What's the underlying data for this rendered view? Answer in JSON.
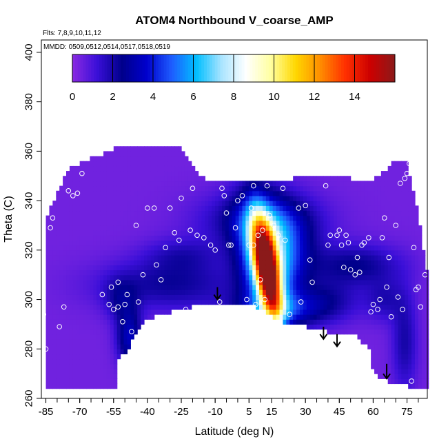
{
  "chart_data": {
    "type": "heatmap",
    "title": "ATOM4 Northbound V_coarse_AMP",
    "subtitle_lines": [
      "Flts: 7,8,9,10,11,12",
      "MMDD: 0509,0512,0514,0517,0518,0519"
    ],
    "xlabel": "Latitude (deg N)",
    "ylabel": "Theta (C)",
    "xlim": [
      -87,
      84
    ],
    "ylim": [
      260,
      405
    ],
    "x_ticks": [
      -85,
      -70,
      -55,
      -40,
      -25,
      -10,
      5,
      15,
      30,
      45,
      60,
      75
    ],
    "x_tick_labels": [
      "-85",
      "-70",
      "-55",
      "-40",
      "-25",
      "-10",
      "5",
      "15",
      "30",
      "45",
      "60",
      "75"
    ],
    "y_ticks": [
      260,
      280,
      300,
      320,
      340,
      360,
      380,
      400
    ],
    "y_tick_labels": [
      "260",
      "280",
      "300",
      "320",
      "340",
      "360",
      "380",
      "400"
    ],
    "colorbar": {
      "range": [
        0,
        16
      ],
      "ticks": [
        0,
        2,
        4,
        6,
        8,
        10,
        12,
        14
      ],
      "tick_labels": [
        "0",
        "2",
        "4",
        "6",
        "8",
        "10",
        "12",
        "14"
      ],
      "colors": [
        "#8a2be2",
        "#3a0fd8",
        "#00008b",
        "#0000cd",
        "#1e5cff",
        "#00bfff",
        "#a8e4ff",
        "#ffffff",
        "#ffffa0",
        "#ffd700",
        "#ff8c00",
        "#ff3000",
        "#cc0000",
        "#8b1a1a"
      ]
    },
    "envelope_top": [
      [
        -85,
        333
      ],
      [
        -80,
        343
      ],
      [
        -75,
        353
      ],
      [
        -70,
        355
      ],
      [
        -65,
        357
      ],
      [
        -60,
        359
      ],
      [
        -55,
        361
      ],
      [
        -50,
        362
      ],
      [
        -45,
        362
      ],
      [
        -40,
        362
      ],
      [
        -35,
        362
      ],
      [
        -30,
        362
      ],
      [
        -25,
        362
      ],
      [
        -20,
        354
      ],
      [
        -15,
        349
      ],
      [
        -10,
        348
      ],
      [
        -5,
        347
      ],
      [
        0,
        347
      ],
      [
        5,
        348
      ],
      [
        10,
        348
      ],
      [
        15,
        348
      ],
      [
        20,
        348
      ],
      [
        25,
        349
      ],
      [
        30,
        349
      ],
      [
        35,
        349
      ],
      [
        40,
        349
      ],
      [
        45,
        349
      ],
      [
        50,
        349
      ],
      [
        55,
        348
      ],
      [
        60,
        348
      ],
      [
        65,
        352
      ],
      [
        70,
        356
      ],
      [
        74,
        357
      ],
      [
        76,
        352
      ],
      [
        80,
        335
      ],
      [
        84,
        310
      ]
    ],
    "envelope_bottom": [
      [
        -85,
        265
      ],
      [
        -80,
        265
      ],
      [
        -75,
        264
      ],
      [
        -70,
        264
      ],
      [
        -65,
        264
      ],
      [
        -60,
        264
      ],
      [
        -55,
        264
      ],
      [
        -53,
        264
      ],
      [
        -53,
        276
      ],
      [
        -50,
        278
      ],
      [
        -47,
        283
      ],
      [
        -44,
        288
      ],
      [
        -40,
        292
      ],
      [
        -35,
        294
      ],
      [
        -30,
        295
      ],
      [
        -25,
        296
      ],
      [
        -20,
        297
      ],
      [
        -15,
        298
      ],
      [
        -10,
        298
      ],
      [
        -5,
        299
      ],
      [
        0,
        299
      ],
      [
        5,
        298
      ],
      [
        10,
        296
      ],
      [
        15,
        293
      ],
      [
        20,
        291
      ],
      [
        25,
        290
      ],
      [
        30,
        289
      ],
      [
        35,
        288
      ],
      [
        40,
        287
      ],
      [
        45,
        286
      ],
      [
        50,
        286
      ],
      [
        53,
        285
      ],
      [
        55,
        283
      ],
      [
        58,
        281
      ],
      [
        60,
        270
      ],
      [
        63,
        268
      ],
      [
        66,
        267
      ],
      [
        70,
        266
      ],
      [
        75,
        265
      ],
      [
        80,
        264
      ],
      [
        84,
        264
      ]
    ],
    "background_value": 0.4,
    "features": [
      {
        "x": 13,
        "y": 312,
        "sx": 3.5,
        "sy": 14,
        "amp": 13,
        "tilt": -0.17
      },
      {
        "x": 12,
        "y": 317,
        "sx": 8,
        "sy": 16,
        "amp": 6,
        "tilt": -0.12
      },
      {
        "x": 18,
        "y": 296,
        "sx": 14,
        "sy": 5,
        "amp": 3,
        "tilt": 0
      },
      {
        "x": 22,
        "y": 320,
        "sx": 9,
        "sy": 12,
        "amp": 2.5,
        "tilt": 0
      },
      {
        "x": 10,
        "y": 332,
        "sx": 18,
        "sy": 8,
        "amp": 2.2,
        "tilt": 0
      },
      {
        "x": -30,
        "y": 306,
        "sx": 22,
        "sy": 7,
        "amp": 1.8,
        "tilt": 0
      },
      {
        "x": -25,
        "y": 318,
        "sx": 12,
        "sy": 5,
        "amp": 1.2,
        "tilt": 0
      },
      {
        "x": -48,
        "y": 285,
        "sx": 4,
        "sy": 8,
        "amp": 3,
        "tilt": 0
      },
      {
        "x": -52,
        "y": 300,
        "sx": 5,
        "sy": 6,
        "amp": 1.3,
        "tilt": 0
      },
      {
        "x": 52,
        "y": 314,
        "sx": 14,
        "sy": 6,
        "amp": 2.0,
        "tilt": 0
      },
      {
        "x": 65,
        "y": 300,
        "sx": 6,
        "sy": 6,
        "amp": 1.3,
        "tilt": 0
      },
      {
        "x": 74,
        "y": 283,
        "sx": 4,
        "sy": 14,
        "amp": 1.6,
        "tilt": 0
      },
      {
        "x": 40,
        "y": 300,
        "sx": 10,
        "sy": 6,
        "amp": 1.4,
        "tilt": 0
      }
    ],
    "flight_points": [
      [
        -86,
        294
      ],
      [
        -85,
        280
      ],
      [
        -83,
        329
      ],
      [
        -82,
        333
      ],
      [
        -79,
        289
      ],
      [
        -77,
        297
      ],
      [
        -75,
        344
      ],
      [
        -73,
        342
      ],
      [
        -71,
        343
      ],
      [
        -69,
        351
      ],
      [
        -67,
        359
      ],
      [
        -60,
        302
      ],
      [
        -57,
        298
      ],
      [
        -56,
        305
      ],
      [
        -55,
        296
      ],
      [
        -53,
        307
      ],
      [
        -53,
        297
      ],
      [
        -51,
        291
      ],
      [
        -50,
        298
      ],
      [
        -49,
        302
      ],
      [
        -47,
        287
      ],
      [
        -45,
        330
      ],
      [
        -44,
        299
      ],
      [
        -42,
        310
      ],
      [
        -40,
        337
      ],
      [
        -37,
        337
      ],
      [
        -36,
        314
      ],
      [
        -34,
        308
      ],
      [
        -32,
        321
      ],
      [
        -30,
        337
      ],
      [
        -28,
        327
      ],
      [
        -26,
        324
      ],
      [
        -25,
        341
      ],
      [
        -23,
        296
      ],
      [
        -21,
        328
      ],
      [
        -20,
        345
      ],
      [
        -18,
        326
      ],
      [
        -15,
        325
      ],
      [
        -12,
        322
      ],
      [
        -10,
        320
      ],
      [
        -8,
        299
      ],
      [
        -7,
        345
      ],
      [
        -6,
        342
      ],
      [
        -5,
        335
      ],
      [
        -4,
        322
      ],
      [
        -3,
        322
      ],
      [
        -1,
        329
      ],
      [
        0,
        340
      ],
      [
        2,
        342
      ],
      [
        4,
        300
      ],
      [
        5,
        322
      ],
      [
        6,
        337
      ],
      [
        7,
        346
      ],
      [
        7,
        322
      ],
      [
        8,
        298
      ],
      [
        9,
        326
      ],
      [
        10,
        308
      ],
      [
        11,
        328
      ],
      [
        12,
        300
      ],
      [
        13,
        346
      ],
      [
        14,
        334
      ],
      [
        16,
        330
      ],
      [
        18,
        326
      ],
      [
        20,
        345
      ],
      [
        21,
        324
      ],
      [
        23,
        294
      ],
      [
        27,
        337
      ],
      [
        28,
        299
      ],
      [
        30,
        338
      ],
      [
        32,
        316
      ],
      [
        33,
        307
      ],
      [
        39,
        346
      ],
      [
        40,
        322
      ],
      [
        41,
        326
      ],
      [
        44,
        326
      ],
      [
        45,
        328
      ],
      [
        46,
        322
      ],
      [
        47,
        313
      ],
      [
        48,
        326
      ],
      [
        49,
        323
      ],
      [
        50,
        312
      ],
      [
        52,
        310
      ],
      [
        53,
        317
      ],
      [
        54,
        311
      ],
      [
        55,
        322
      ],
      [
        56,
        323
      ],
      [
        58,
        325
      ],
      [
        59,
        295
      ],
      [
        60,
        298
      ],
      [
        62,
        296
      ],
      [
        63,
        300
      ],
      [
        64,
        325
      ],
      [
        65,
        333
      ],
      [
        66,
        305
      ],
      [
        67,
        317
      ],
      [
        68,
        293
      ],
      [
        70,
        330
      ],
      [
        71,
        301
      ],
      [
        72,
        347
      ],
      [
        73,
        296
      ],
      [
        74,
        349
      ],
      [
        75,
        351
      ],
      [
        76,
        355
      ],
      [
        77,
        267
      ],
      [
        78,
        321
      ],
      [
        79,
        304
      ],
      [
        80,
        305
      ],
      [
        81,
        297
      ],
      [
        83,
        310
      ]
    ],
    "arrows": [
      [
        -9,
        305,
        300
      ],
      [
        38,
        289,
        284
      ],
      [
        44,
        286,
        281
      ],
      [
        66,
        274,
        268
      ]
    ]
  }
}
